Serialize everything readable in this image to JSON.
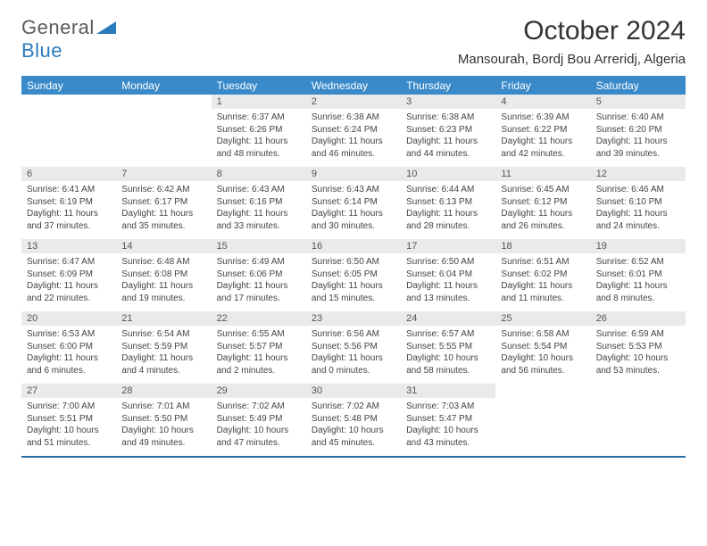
{
  "logo": {
    "text1": "General",
    "text2": "Blue"
  },
  "title": "October 2024",
  "location": "Mansourah, Bordj Bou Arreridj, Algeria",
  "colors": {
    "header_bg": "#3a8ac9",
    "header_fg": "#ffffff",
    "daynum_bg": "#eaeaea",
    "border": "#2a6ca3",
    "logo_blue": "#2a7bbd",
    "logo_gray": "#5a5a5a",
    "text": "#333333",
    "cell_text": "#444444"
  },
  "day_headers": [
    "Sunday",
    "Monday",
    "Tuesday",
    "Wednesday",
    "Thursday",
    "Friday",
    "Saturday"
  ],
  "weeks": [
    [
      {
        "n": "",
        "c": ""
      },
      {
        "n": "",
        "c": ""
      },
      {
        "n": "1",
        "c": "Sunrise: 6:37 AM\nSunset: 6:26 PM\nDaylight: 11 hours and 48 minutes."
      },
      {
        "n": "2",
        "c": "Sunrise: 6:38 AM\nSunset: 6:24 PM\nDaylight: 11 hours and 46 minutes."
      },
      {
        "n": "3",
        "c": "Sunrise: 6:38 AM\nSunset: 6:23 PM\nDaylight: 11 hours and 44 minutes."
      },
      {
        "n": "4",
        "c": "Sunrise: 6:39 AM\nSunset: 6:22 PM\nDaylight: 11 hours and 42 minutes."
      },
      {
        "n": "5",
        "c": "Sunrise: 6:40 AM\nSunset: 6:20 PM\nDaylight: 11 hours and 39 minutes."
      }
    ],
    [
      {
        "n": "6",
        "c": "Sunrise: 6:41 AM\nSunset: 6:19 PM\nDaylight: 11 hours and 37 minutes."
      },
      {
        "n": "7",
        "c": "Sunrise: 6:42 AM\nSunset: 6:17 PM\nDaylight: 11 hours and 35 minutes."
      },
      {
        "n": "8",
        "c": "Sunrise: 6:43 AM\nSunset: 6:16 PM\nDaylight: 11 hours and 33 minutes."
      },
      {
        "n": "9",
        "c": "Sunrise: 6:43 AM\nSunset: 6:14 PM\nDaylight: 11 hours and 30 minutes."
      },
      {
        "n": "10",
        "c": "Sunrise: 6:44 AM\nSunset: 6:13 PM\nDaylight: 11 hours and 28 minutes."
      },
      {
        "n": "11",
        "c": "Sunrise: 6:45 AM\nSunset: 6:12 PM\nDaylight: 11 hours and 26 minutes."
      },
      {
        "n": "12",
        "c": "Sunrise: 6:46 AM\nSunset: 6:10 PM\nDaylight: 11 hours and 24 minutes."
      }
    ],
    [
      {
        "n": "13",
        "c": "Sunrise: 6:47 AM\nSunset: 6:09 PM\nDaylight: 11 hours and 22 minutes."
      },
      {
        "n": "14",
        "c": "Sunrise: 6:48 AM\nSunset: 6:08 PM\nDaylight: 11 hours and 19 minutes."
      },
      {
        "n": "15",
        "c": "Sunrise: 6:49 AM\nSunset: 6:06 PM\nDaylight: 11 hours and 17 minutes."
      },
      {
        "n": "16",
        "c": "Sunrise: 6:50 AM\nSunset: 6:05 PM\nDaylight: 11 hours and 15 minutes."
      },
      {
        "n": "17",
        "c": "Sunrise: 6:50 AM\nSunset: 6:04 PM\nDaylight: 11 hours and 13 minutes."
      },
      {
        "n": "18",
        "c": "Sunrise: 6:51 AM\nSunset: 6:02 PM\nDaylight: 11 hours and 11 minutes."
      },
      {
        "n": "19",
        "c": "Sunrise: 6:52 AM\nSunset: 6:01 PM\nDaylight: 11 hours and 8 minutes."
      }
    ],
    [
      {
        "n": "20",
        "c": "Sunrise: 6:53 AM\nSunset: 6:00 PM\nDaylight: 11 hours and 6 minutes."
      },
      {
        "n": "21",
        "c": "Sunrise: 6:54 AM\nSunset: 5:59 PM\nDaylight: 11 hours and 4 minutes."
      },
      {
        "n": "22",
        "c": "Sunrise: 6:55 AM\nSunset: 5:57 PM\nDaylight: 11 hours and 2 minutes."
      },
      {
        "n": "23",
        "c": "Sunrise: 6:56 AM\nSunset: 5:56 PM\nDaylight: 11 hours and 0 minutes."
      },
      {
        "n": "24",
        "c": "Sunrise: 6:57 AM\nSunset: 5:55 PM\nDaylight: 10 hours and 58 minutes."
      },
      {
        "n": "25",
        "c": "Sunrise: 6:58 AM\nSunset: 5:54 PM\nDaylight: 10 hours and 56 minutes."
      },
      {
        "n": "26",
        "c": "Sunrise: 6:59 AM\nSunset: 5:53 PM\nDaylight: 10 hours and 53 minutes."
      }
    ],
    [
      {
        "n": "27",
        "c": "Sunrise: 7:00 AM\nSunset: 5:51 PM\nDaylight: 10 hours and 51 minutes."
      },
      {
        "n": "28",
        "c": "Sunrise: 7:01 AM\nSunset: 5:50 PM\nDaylight: 10 hours and 49 minutes."
      },
      {
        "n": "29",
        "c": "Sunrise: 7:02 AM\nSunset: 5:49 PM\nDaylight: 10 hours and 47 minutes."
      },
      {
        "n": "30",
        "c": "Sunrise: 7:02 AM\nSunset: 5:48 PM\nDaylight: 10 hours and 45 minutes."
      },
      {
        "n": "31",
        "c": "Sunrise: 7:03 AM\nSunset: 5:47 PM\nDaylight: 10 hours and 43 minutes."
      },
      {
        "n": "",
        "c": ""
      },
      {
        "n": "",
        "c": ""
      }
    ]
  ]
}
